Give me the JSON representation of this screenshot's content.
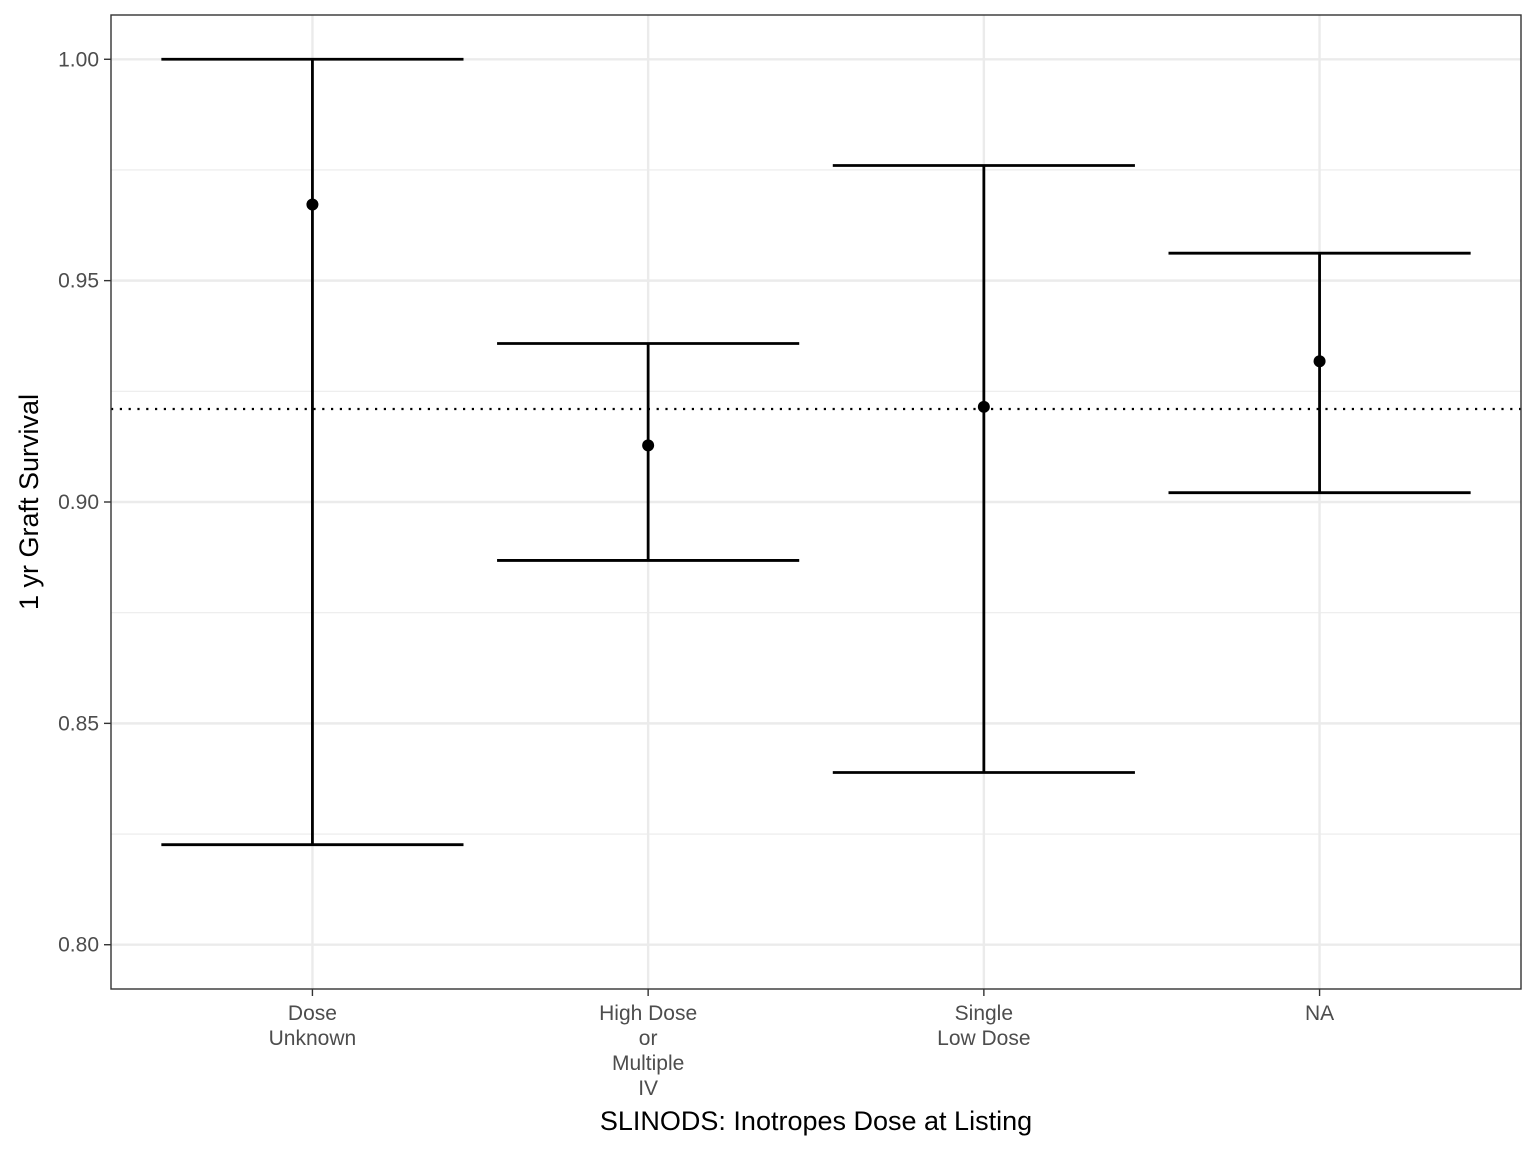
{
  "chart_data": {
    "type": "errorbar",
    "xlabel": "SLINODS: Inotropes Dose at Listing",
    "ylabel": "1 yr Graft Survival",
    "ylim": [
      0.79,
      1.01
    ],
    "yticks": [
      0.8,
      0.85,
      0.9,
      0.95,
      1.0
    ],
    "ytick_labels": [
      "0.80",
      "0.85",
      "0.90",
      "0.95",
      "1.00"
    ],
    "categories": [
      [
        "Dose",
        "Unknown"
      ],
      [
        "High Dose",
        "or",
        "Multiple",
        "IV"
      ],
      [
        "Single",
        "Low Dose"
      ],
      [
        "NA"
      ]
    ],
    "points": [
      {
        "estimate": 0.9672,
        "lower": 0.8226,
        "upper": 1.0
      },
      {
        "estimate": 0.9128,
        "lower": 0.8868,
        "upper": 0.9358
      },
      {
        "estimate": 0.9215,
        "lower": 0.8389,
        "upper": 0.976
      },
      {
        "estimate": 0.9318,
        "lower": 0.9021,
        "upper": 0.9562
      }
    ],
    "reference_line": {
      "y": 0.921,
      "style": "dotted"
    },
    "grid": true,
    "legend": "none",
    "colors": {
      "marks": "#000000",
      "grid": "#ebebeb",
      "panel_border": "#333333",
      "tick_text": "#4d4d4d"
    }
  }
}
